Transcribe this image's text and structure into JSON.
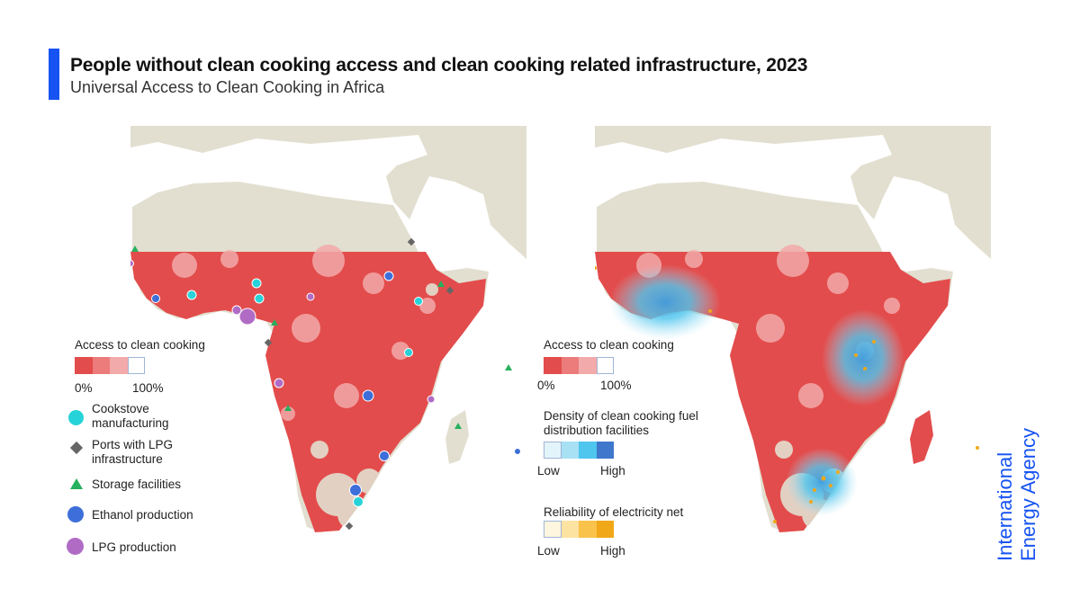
{
  "header": {
    "title": "People without clean cooking access and clean cooking related infrastructure, 2023",
    "subtitle": "Universal Access to Clean Cooking in Africa",
    "accent_color": "#1753f3"
  },
  "left_map": {
    "legend": {
      "access_title": "Access to clean cooking",
      "access_colors": [
        "#e34c4c",
        "#ec7b7b",
        "#f3aaaa",
        "#ffffff"
      ],
      "access_min": "0%",
      "access_max": "100%",
      "symbols": [
        {
          "label": "Cookstove manufacturing",
          "shape": "circle",
          "color": "#27d3d8"
        },
        {
          "label": "Ports with LPG infrastructure",
          "shape": "diamond",
          "color": "#666666"
        },
        {
          "label": "Storage facilities",
          "shape": "triangle",
          "color": "#27b05e"
        },
        {
          "label": "Ethanol production",
          "shape": "circle",
          "color": "#3d6ed9"
        },
        {
          "label": "LPG production",
          "shape": "circle",
          "color": "#b06cc4"
        }
      ]
    }
  },
  "right_map": {
    "legend": {
      "access_title": "Access to clean cooking",
      "access_colors": [
        "#e34c4c",
        "#ec7b7b",
        "#f3aaaa",
        "#ffffff"
      ],
      "access_min": "0%",
      "access_max": "100%",
      "density_title": "Density of clean cooking fuel distribution facilities",
      "density_colors": [
        "#e4f4fb",
        "#a8e0f4",
        "#4fc6ee",
        "#3f77cc"
      ],
      "density_min": "Low",
      "density_max": "High",
      "reliability_title": "Reliability of electricity net",
      "reliability_colors": [
        "#fff6e0",
        "#fde3a2",
        "#f9c24a",
        "#f0a718"
      ],
      "reliability_min": "Low",
      "reliability_max": "High"
    }
  },
  "colors": {
    "land_other": "#e2dfd0",
    "ocean": "#ffffff",
    "no_access": "#e34c4c"
  },
  "logo": {
    "line1": "International",
    "line2": "Energy Agency",
    "color": "#1753f3"
  }
}
